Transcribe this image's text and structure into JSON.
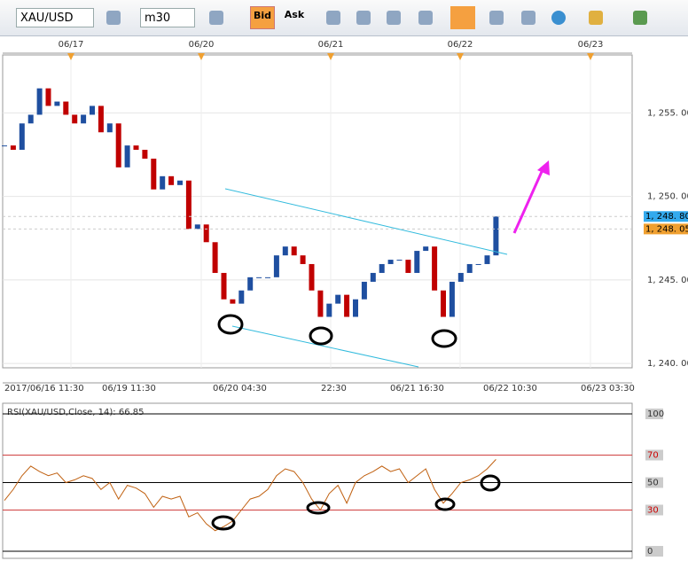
{
  "toolbar": {
    "symbol": "XAU/USD",
    "timeframe": "m30",
    "bid": "Bid",
    "ask": "Ask"
  },
  "chart_data": {
    "type": "candlestick",
    "top_dates": [
      "06/17",
      "06/20",
      "06/21",
      "06/22",
      "06/23"
    ],
    "time_labels": [
      "2017/06/16 11:30",
      "06/19 11:30",
      "06/20 04:30",
      "22:30",
      "06/21 16:30",
      "06/22 10:30",
      "06/23 03:30"
    ],
    "closes": [
      1253.05,
      1252.79,
      1254.37,
      1254.89,
      1256.47,
      1255.42,
      1255.68,
      1254.89,
      1254.37,
      1254.89,
      1255.42,
      1253.84,
      1254.37,
      1251.74,
      1253.05,
      1252.79,
      1252.26,
      1250.42,
      1251.21,
      1250.68,
      1250.95,
      1248.05,
      1248.32,
      1247.26,
      1245.42,
      1243.84,
      1243.58,
      1244.37,
      1245.16,
      1245.16,
      1245.16,
      1246.47,
      1247.0,
      1246.47,
      1245.95,
      1244.37,
      1242.79,
      1243.58,
      1244.11,
      1242.79,
      1243.84,
      1244.89,
      1245.42,
      1245.95,
      1246.21,
      1246.21,
      1245.42,
      1246.74,
      1247.0,
      1244.37,
      1242.79,
      1244.89,
      1245.42,
      1245.95,
      1245.95,
      1246.47,
      1248.8
    ],
    "up_color": "#1f4fa0",
    "down_color": "#c00000",
    "ylim": [
      1239.74,
      1258.47
    ],
    "yticks": [
      {
        "value": 1255,
        "label": "1, 255. 00"
      },
      {
        "value": 1250,
        "label": "1, 250. 00"
      },
      {
        "value": 1245,
        "label": "1, 245. 00"
      },
      {
        "value": 1240,
        "label": "1, 240. 00"
      }
    ],
    "price_tags": [
      {
        "value": 1248.8,
        "label": "1, 248. 80",
        "color": "#33aaee"
      },
      {
        "value": 1248.05,
        "label": "1, 248. 05",
        "color": "#f0a030"
      }
    ],
    "rsi": {
      "title": "RSI(XAU/USD,Close, 14): 66.85",
      "color": "#c06010",
      "values": [
        37,
        45,
        55,
        62,
        58,
        55,
        57,
        50,
        52,
        55,
        53,
        45,
        50,
        38,
        48,
        46,
        42,
        32,
        40,
        38,
        40,
        25,
        28,
        20,
        15,
        18,
        22,
        30,
        38,
        40,
        45,
        55,
        60,
        58,
        50,
        38,
        30,
        42,
        48,
        35,
        50,
        55,
        58,
        62,
        58,
        60,
        50,
        55,
        60,
        45,
        35,
        42,
        50,
        52,
        55,
        60,
        66.85
      ],
      "ylim": [
        0,
        100
      ],
      "yticks": [
        100,
        70,
        50,
        30,
        0
      ]
    }
  }
}
